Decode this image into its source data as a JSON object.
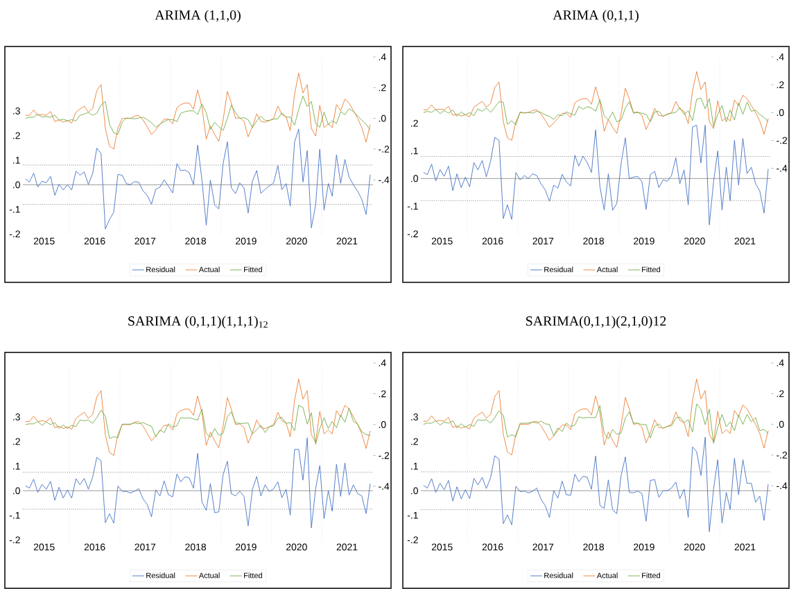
{
  "chart_data": [
    {
      "type": "line",
      "title": "ARIMA (1,1,0)",
      "legend": "bottom",
      "x": [
        "2015-02",
        "2015-03",
        "2015-04",
        "2015-05",
        "2015-06",
        "2015-07",
        "2015-08",
        "2015-09",
        "2015-10",
        "2015-11",
        "2015-12",
        "2016-01",
        "2016-02",
        "2016-03",
        "2016-04",
        "2016-05",
        "2016-06",
        "2016-07",
        "2016-08",
        "2016-09",
        "2016-10",
        "2016-11",
        "2016-12",
        "2017-01",
        "2017-02",
        "2017-03",
        "2017-04",
        "2017-05",
        "2017-06",
        "2017-07",
        "2017-08",
        "2017-09",
        "2017-10",
        "2017-11",
        "2017-12",
        "2018-01",
        "2018-02",
        "2018-03",
        "2018-04",
        "2018-05",
        "2018-06",
        "2018-07",
        "2018-08",
        "2018-09",
        "2018-10",
        "2018-11",
        "2018-12",
        "2019-01",
        "2019-02",
        "2019-03",
        "2019-04",
        "2019-05",
        "2019-06",
        "2019-07",
        "2019-08",
        "2019-09",
        "2019-10",
        "2019-11",
        "2019-12",
        "2020-01",
        "2020-02",
        "2020-03",
        "2020-04",
        "2020-05",
        "2020-06",
        "2020-07",
        "2020-08",
        "2020-09",
        "2020-10",
        "2020-11",
        "2020-12",
        "2021-01",
        "2021-02",
        "2021-03",
        "2021-04",
        "2021-05",
        "2021-06",
        "2021-07",
        "2021-08",
        "2021-09",
        "2021-10",
        "2021-11",
        "2021-12"
      ],
      "xlim": [
        "2015-01-13",
        "2021-12-21"
      ],
      "xticks": [
        {
          "value": "2015-06-16",
          "label": "2015"
        },
        {
          "value": "2016-06-16",
          "label": "2016"
        },
        {
          "value": "2017-06-16",
          "label": "2017"
        },
        {
          "value": "2018-06-16",
          "label": "2018"
        },
        {
          "value": "2019-06-16",
          "label": "2019"
        },
        {
          "value": "2020-06-16",
          "label": "2020"
        },
        {
          "value": "2021-06-16",
          "label": "2021"
        }
      ],
      "ylim": [
        -0.205,
        0.52
      ],
      "yticks": [
        {
          "value": -0.2,
          "label": "-.2"
        },
        {
          "value": -0.1,
          "label": "-.1"
        },
        {
          "value": 0,
          "label": ".0"
        },
        {
          "value": 0.1,
          "label": ".1"
        },
        {
          "value": 0.2,
          "label": ".2"
        },
        {
          "value": 0.3,
          "label": ".3"
        }
      ],
      "y2lim": [
        -0.76,
        0.4
      ],
      "y2ticks": [
        {
          "value": -0.4,
          "label": "-.4"
        },
        {
          "value": -0.2,
          "label": "-.2"
        },
        {
          "value": 0,
          "label": ".0"
        },
        {
          "value": 0.2,
          "label": ".2"
        },
        {
          "value": 0.4,
          "label": ".4"
        }
      ],
      "ref_lines": [
        {
          "axis": "x",
          "value": "2015-12-16",
          "color": "#d9d9d9",
          "line_style": "dotted"
        },
        {
          "axis": "x",
          "value": "2016-12-16",
          "color": "#d9d9d9",
          "line_style": "dotted"
        },
        {
          "axis": "x",
          "value": "2017-12-16",
          "color": "#d9d9d9",
          "line_style": "dotted"
        },
        {
          "axis": "x",
          "value": "2018-12-16",
          "color": "#d9d9d9",
          "line_style": "dotted"
        },
        {
          "axis": "x",
          "value": "2019-12-16",
          "color": "#d9d9d9",
          "line_style": "dotted"
        },
        {
          "axis": "x",
          "value": "2020-12-16",
          "color": "#d9d9d9",
          "line_style": "dotted"
        },
        {
          "axis": "y",
          "value": 0,
          "color": "#808080",
          "line_style": "solid"
        },
        {
          "axis": "y",
          "value": 0.08,
          "color": "#404040",
          "line_style": "dotted"
        },
        {
          "axis": "y",
          "value": -0.08,
          "color": "#404040",
          "line_style": "dotted"
        }
      ],
      "series": [
        {
          "name": "Residual",
          "color": "#4472c4",
          "values": [
            0.024,
            0.011,
            0.047,
            -0.009,
            0.015,
            0.008,
            0.034,
            -0.043,
            0.002,
            -0.021,
            0.0,
            -0.021,
            0.055,
            0.039,
            0.052,
            0.001,
            0.046,
            0.149,
            0.127,
            -0.18,
            -0.141,
            -0.112,
            0.042,
            0.039,
            0.004,
            0.001,
            0.013,
            0.01,
            -0.025,
            -0.043,
            -0.079,
            -0.018,
            -0.01,
            0.02,
            -0.005,
            -0.033,
            0.086,
            0.057,
            0.06,
            0.049,
            0.001,
            0.161,
            0.019,
            -0.164,
            0.019,
            -0.082,
            -0.098,
            0.086,
            0.175,
            -0.012,
            -0.036,
            0.008,
            -0.012,
            -0.115,
            0.015,
            0.058,
            -0.035,
            -0.018,
            -0.005,
            0.008,
            0.078,
            -0.02,
            0.005,
            -0.087,
            0.173,
            0.227,
            0.011,
            0.139,
            -0.175,
            -0.082,
            0.145,
            -0.103,
            0.005,
            -0.046,
            0.122,
            0.006,
            0.103,
            0.031,
            0.0,
            -0.026,
            -0.059,
            -0.121,
            0.041
          ]
        },
        {
          "name": "Actual",
          "color": "#ed7d31",
          "axis": "y2",
          "values": [
            0.02,
            0.02,
            0.055,
            0.02,
            0.025,
            0.02,
            0.045,
            -0.02,
            -0.01,
            -0.025,
            -0.015,
            -0.03,
            0.04,
            0.06,
            0.08,
            0.04,
            0.065,
            0.18,
            0.22,
            -0.065,
            -0.18,
            -0.2,
            -0.065,
            0.0,
            0.0,
            0.0,
            0.015,
            0.02,
            -0.01,
            -0.055,
            -0.105,
            -0.075,
            -0.04,
            -0.005,
            -0.005,
            -0.035,
            0.07,
            0.09,
            0.1,
            0.1,
            0.06,
            0.185,
            0.075,
            -0.135,
            -0.05,
            -0.105,
            -0.15,
            -0.01,
            0.175,
            0.1,
            0.0,
            0.005,
            -0.02,
            -0.12,
            -0.055,
            0.03,
            -0.02,
            -0.025,
            -0.015,
            0.0,
            0.08,
            0.025,
            0.01,
            -0.08,
            0.155,
            0.295,
            0.165,
            0.22,
            -0.065,
            -0.115,
            0.085,
            -0.06,
            -0.035,
            -0.06,
            0.09,
            0.05,
            0.125,
            0.1,
            0.05,
            0.0,
            -0.06,
            -0.155,
            -0.04
          ]
        },
        {
          "name": "Fitted",
          "color": "#70ad47",
          "axis": "y2",
          "values": [
            0.0,
            0.007,
            0.008,
            0.028,
            0.008,
            0.012,
            0.008,
            0.021,
            -0.012,
            -0.005,
            -0.016,
            -0.008,
            -0.016,
            0.02,
            0.028,
            0.038,
            0.02,
            0.033,
            0.087,
            0.11,
            -0.038,
            -0.094,
            -0.104,
            -0.025,
            0.003,
            0.0,
            -0.003,
            0.003,
            0.008,
            -0.008,
            -0.028,
            -0.058,
            -0.038,
            -0.021,
            -0.008,
            -0.008,
            -0.021,
            0.033,
            0.044,
            0.049,
            0.049,
            0.025,
            0.094,
            0.036,
            -0.071,
            -0.025,
            -0.054,
            -0.079,
            0.0,
            0.086,
            0.038,
            0.0,
            0.005,
            -0.008,
            -0.061,
            -0.016,
            0.013,
            -0.013,
            -0.013,
            -0.005,
            -0.003,
            0.036,
            0.008,
            0.008,
            -0.044,
            0.058,
            0.145,
            0.077,
            0.11,
            -0.033,
            -0.058,
            0.041,
            -0.041,
            -0.016,
            -0.033,
            0.044,
            0.025,
            0.063,
            0.044,
            0.016,
            -0.012,
            -0.038,
            -0.077
          ]
        }
      ]
    },
    {
      "type": "line",
      "title": "ARIMA (0,1,1)",
      "legend": "bottom",
      "x": [
        "2015-02",
        "2015-03",
        "2015-04",
        "2015-05",
        "2015-06",
        "2015-07",
        "2015-08",
        "2015-09",
        "2015-10",
        "2015-11",
        "2015-12",
        "2016-01",
        "2016-02",
        "2016-03",
        "2016-04",
        "2016-05",
        "2016-06",
        "2016-07",
        "2016-08",
        "2016-09",
        "2016-10",
        "2016-11",
        "2016-12",
        "2017-01",
        "2017-02",
        "2017-03",
        "2017-04",
        "2017-05",
        "2017-06",
        "2017-07",
        "2017-08",
        "2017-09",
        "2017-10",
        "2017-11",
        "2017-12",
        "2018-01",
        "2018-02",
        "2018-03",
        "2018-04",
        "2018-05",
        "2018-06",
        "2018-07",
        "2018-08",
        "2018-09",
        "2018-10",
        "2018-11",
        "2018-12",
        "2019-01",
        "2019-02",
        "2019-03",
        "2019-04",
        "2019-05",
        "2019-06",
        "2019-07",
        "2019-08",
        "2019-09",
        "2019-10",
        "2019-11",
        "2019-12",
        "2020-01",
        "2020-02",
        "2020-03",
        "2020-04",
        "2020-05",
        "2020-06",
        "2020-07",
        "2020-08",
        "2020-09",
        "2020-10",
        "2020-11",
        "2020-12",
        "2021-01",
        "2021-02",
        "2021-03",
        "2021-04",
        "2021-05",
        "2021-06",
        "2021-07",
        "2021-08",
        "2021-09",
        "2021-10",
        "2021-11",
        "2021-12"
      ],
      "xlim": [
        "2015-01-13",
        "2021-12-21"
      ],
      "xticks": [
        {
          "value": "2015-06-16",
          "label": "2015"
        },
        {
          "value": "2016-06-16",
          "label": "2016"
        },
        {
          "value": "2017-06-16",
          "label": "2017"
        },
        {
          "value": "2018-06-16",
          "label": "2018"
        },
        {
          "value": "2019-06-16",
          "label": "2019"
        },
        {
          "value": "2020-06-16",
          "label": "2020"
        },
        {
          "value": "2021-06-16",
          "label": "2021"
        }
      ],
      "ylim": [
        -0.205,
        0.44
      ],
      "yticks": [
        {
          "value": -0.2,
          "label": "-.2"
        },
        {
          "value": -0.1,
          "label": "-.1"
        },
        {
          "value": 0,
          "label": ".0"
        },
        {
          "value": 0.1,
          "label": ".1"
        },
        {
          "value": 0.2,
          "label": ".2"
        }
      ],
      "y2lim": [
        -0.88,
        0.4
      ],
      "y2ticks": [
        {
          "value": -0.4,
          "label": "-.4"
        },
        {
          "value": -0.2,
          "label": "-.2"
        },
        {
          "value": 0,
          "label": ".0"
        },
        {
          "value": 0.2,
          "label": ".2"
        },
        {
          "value": 0.4,
          "label": ".4"
        }
      ],
      "ref_lines": [
        {
          "axis": "x",
          "value": "2015-12-16",
          "color": "#d9d9d9",
          "line_style": "dotted"
        },
        {
          "axis": "x",
          "value": "2016-12-16",
          "color": "#d9d9d9",
          "line_style": "dotted"
        },
        {
          "axis": "x",
          "value": "2017-12-16",
          "color": "#d9d9d9",
          "line_style": "dotted"
        },
        {
          "axis": "x",
          "value": "2018-12-16",
          "color": "#d9d9d9",
          "line_style": "dotted"
        },
        {
          "axis": "x",
          "value": "2019-12-16",
          "color": "#d9d9d9",
          "line_style": "dotted"
        },
        {
          "axis": "x",
          "value": "2020-12-16",
          "color": "#d9d9d9",
          "line_style": "dotted"
        },
        {
          "axis": "y",
          "value": 0,
          "color": "#808080",
          "line_style": "solid"
        },
        {
          "axis": "y",
          "value": 0.08,
          "color": "#404040",
          "line_style": "dotted"
        },
        {
          "axis": "y",
          "value": -0.08,
          "color": "#404040",
          "line_style": "dotted"
        }
      ],
      "series": [
        {
          "name": "Residual",
          "color": "#4472c4",
          "values": [
            0.022,
            0.014,
            0.052,
            -0.009,
            0.032,
            0.008,
            0.045,
            -0.044,
            0.017,
            -0.033,
            0.005,
            -0.03,
            0.058,
            0.031,
            0.065,
            0.006,
            0.063,
            0.149,
            0.138,
            -0.145,
            -0.095,
            -0.148,
            0.022,
            -0.005,
            0.011,
            0.0,
            0.017,
            0.011,
            -0.019,
            -0.041,
            -0.082,
            -0.024,
            -0.035,
            0.015,
            -0.012,
            -0.027,
            0.084,
            0.045,
            0.081,
            0.058,
            0.022,
            0.176,
            -0.03,
            -0.114,
            0.017,
            -0.115,
            -0.091,
            0.054,
            0.147,
            0.0,
            0.005,
            0.008,
            -0.012,
            -0.112,
            0.015,
            0.026,
            -0.033,
            -0.005,
            -0.01,
            0.011,
            0.075,
            -0.019,
            0.031,
            -0.095,
            0.186,
            0.193,
            0.056,
            0.193,
            -0.168,
            -0.01,
            0.1,
            -0.114,
            0.041,
            -0.08,
            0.138,
            -0.024,
            0.145,
            0.018,
            0.041,
            -0.019,
            -0.045,
            -0.125,
            0.034
          ]
        },
        {
          "name": "Actual",
          "color": "#ed7d31",
          "axis": "y2",
          "values": [
            0.02,
            0.02,
            0.055,
            0.02,
            0.025,
            0.02,
            0.045,
            -0.02,
            -0.01,
            -0.025,
            -0.015,
            -0.03,
            0.04,
            0.06,
            0.08,
            0.04,
            0.065,
            0.18,
            0.22,
            -0.065,
            -0.18,
            -0.2,
            -0.065,
            0.0,
            0.0,
            0.0,
            0.015,
            0.02,
            -0.01,
            -0.055,
            -0.105,
            -0.075,
            -0.04,
            -0.005,
            -0.005,
            -0.035,
            0.07,
            0.09,
            0.1,
            0.1,
            0.06,
            0.185,
            0.075,
            -0.135,
            -0.05,
            -0.105,
            -0.15,
            -0.01,
            0.175,
            0.1,
            0.0,
            0.005,
            -0.02,
            -0.12,
            -0.055,
            0.03,
            -0.02,
            -0.025,
            -0.015,
            0.0,
            0.08,
            0.025,
            0.01,
            -0.08,
            0.155,
            0.295,
            0.165,
            0.22,
            -0.065,
            -0.115,
            0.085,
            -0.06,
            -0.035,
            -0.06,
            0.09,
            0.05,
            0.125,
            0.1,
            0.05,
            0.0,
            -0.06,
            -0.155,
            -0.04
          ]
        },
        {
          "name": "Fitted",
          "color": "#70ad47",
          "axis": "y2",
          "values": [
            0.0,
            0.009,
            0.002,
            0.024,
            -0.007,
            0.015,
            -0.004,
            0.02,
            -0.027,
            0.005,
            -0.016,
            0.0,
            -0.022,
            0.027,
            0.009,
            0.033,
            0.002,
            0.038,
            0.078,
            0.075,
            -0.085,
            -0.058,
            -0.089,
            0.005,
            -0.004,
            0.002,
            -0.004,
            0.009,
            0.002,
            -0.016,
            -0.027,
            -0.049,
            -0.016,
            -0.022,
            0.005,
            -0.009,
            -0.018,
            0.045,
            0.024,
            0.042,
            0.033,
            0.009,
            0.093,
            -0.022,
            -0.053,
            0.005,
            -0.067,
            -0.053,
            0.033,
            0.078,
            -0.004,
            0.0,
            -0.004,
            -0.013,
            -0.067,
            0.005,
            0.009,
            -0.027,
            -0.009,
            -0.005,
            0.002,
            0.036,
            -0.013,
            0.013,
            -0.058,
            0.096,
            0.105,
            0.027,
            0.1,
            -0.1,
            -0.013,
            0.051,
            -0.067,
            0.018,
            -0.053,
            0.069,
            -0.013,
            0.075,
            0.009,
            0.018,
            -0.013,
            -0.035,
            -0.067
          ]
        }
      ]
    },
    {
      "type": "line",
      "title": "SARIMA (0,1,1)(1,1,1)$_{12}$",
      "legend": "bottom",
      "x": [
        "2015-02",
        "2015-03",
        "2015-04",
        "2015-05",
        "2015-06",
        "2015-07",
        "2015-08",
        "2015-09",
        "2015-10",
        "2015-11",
        "2015-12",
        "2016-01",
        "2016-02",
        "2016-03",
        "2016-04",
        "2016-05",
        "2016-06",
        "2016-07",
        "2016-08",
        "2016-09",
        "2016-10",
        "2016-11",
        "2016-12",
        "2017-01",
        "2017-02",
        "2017-03",
        "2017-04",
        "2017-05",
        "2017-06",
        "2017-07",
        "2017-08",
        "2017-09",
        "2017-10",
        "2017-11",
        "2017-12",
        "2018-01",
        "2018-02",
        "2018-03",
        "2018-04",
        "2018-05",
        "2018-06",
        "2018-07",
        "2018-08",
        "2018-09",
        "2018-10",
        "2018-11",
        "2018-12",
        "2019-01",
        "2019-02",
        "2019-03",
        "2019-04",
        "2019-05",
        "2019-06",
        "2019-07",
        "2019-08",
        "2019-09",
        "2019-10",
        "2019-11",
        "2019-12",
        "2020-01",
        "2020-02",
        "2020-03",
        "2020-04",
        "2020-05",
        "2020-06",
        "2020-07",
        "2020-08",
        "2020-09",
        "2020-10",
        "2020-11",
        "2020-12",
        "2021-01",
        "2021-02",
        "2021-03",
        "2021-04",
        "2021-05",
        "2021-06",
        "2021-07",
        "2021-08",
        "2021-09",
        "2021-10",
        "2021-11",
        "2021-12"
      ],
      "xlim": [
        "2015-01-13",
        "2021-12-21"
      ],
      "xticks": [
        {
          "value": "2015-06-16",
          "label": "2015"
        },
        {
          "value": "2016-06-16",
          "label": "2016"
        },
        {
          "value": "2017-06-16",
          "label": "2017"
        },
        {
          "value": "2018-06-16",
          "label": "2018"
        },
        {
          "value": "2019-06-16",
          "label": "2019"
        },
        {
          "value": "2020-06-16",
          "label": "2020"
        },
        {
          "value": "2021-06-16",
          "label": "2021"
        }
      ],
      "ylim": [
        -0.205,
        0.52
      ],
      "yticks": [
        {
          "value": -0.2,
          "label": "-.2"
        },
        {
          "value": -0.1,
          "label": "-.1"
        },
        {
          "value": 0,
          "label": ".0"
        },
        {
          "value": 0.1,
          "label": ".1"
        },
        {
          "value": 0.2,
          "label": ".2"
        },
        {
          "value": 0.3,
          "label": ".3"
        }
      ],
      "y2lim": [
        -0.755,
        0.4
      ],
      "y2ticks": [
        {
          "value": -0.4,
          "label": "-.4"
        },
        {
          "value": -0.2,
          "label": "-.2"
        },
        {
          "value": 0,
          "label": ".0"
        },
        {
          "value": 0.2,
          "label": ".2"
        },
        {
          "value": 0.4,
          "label": ".4"
        }
      ],
      "ref_lines": [
        {
          "axis": "x",
          "value": "2015-12-16",
          "color": "#d9d9d9",
          "line_style": "dotted"
        },
        {
          "axis": "x",
          "value": "2016-12-16",
          "color": "#d9d9d9",
          "line_style": "dotted"
        },
        {
          "axis": "x",
          "value": "2017-12-16",
          "color": "#d9d9d9",
          "line_style": "dotted"
        },
        {
          "axis": "x",
          "value": "2018-12-16",
          "color": "#d9d9d9",
          "line_style": "dotted"
        },
        {
          "axis": "x",
          "value": "2019-12-16",
          "color": "#d9d9d9",
          "line_style": "dotted"
        },
        {
          "axis": "x",
          "value": "2020-12-16",
          "color": "#d9d9d9",
          "line_style": "dotted"
        },
        {
          "axis": "y",
          "value": 0,
          "color": "#808080",
          "line_style": "solid"
        },
        {
          "axis": "y",
          "value": 0.075,
          "color": "#404040",
          "line_style": "dotted"
        },
        {
          "axis": "y",
          "value": -0.075,
          "color": "#404040",
          "line_style": "dotted"
        }
      ],
      "series": [
        {
          "name": "Residual",
          "color": "#4472c4",
          "values": [
            0.019,
            0.011,
            0.047,
            -0.007,
            0.026,
            0.006,
            0.038,
            -0.039,
            0.014,
            -0.03,
            0.003,
            -0.03,
            0.049,
            0.024,
            0.05,
            0.006,
            0.055,
            0.136,
            0.121,
            -0.13,
            -0.094,
            -0.132,
            0.019,
            -0.002,
            -0.003,
            -0.009,
            -0.002,
            0.008,
            -0.033,
            -0.056,
            -0.106,
            0.003,
            -0.021,
            0.04,
            -0.016,
            -0.025,
            0.068,
            0.036,
            0.057,
            0.052,
            0.01,
            0.152,
            -0.046,
            -0.08,
            0.029,
            -0.089,
            -0.086,
            0.066,
            0.12,
            -0.012,
            -0.021,
            -0.002,
            -0.023,
            -0.143,
            0.005,
            0.058,
            -0.021,
            0.024,
            -0.003,
            0.008,
            0.036,
            -0.028,
            0.005,
            -0.099,
            0.168,
            0.168,
            0.043,
            0.215,
            -0.151,
            0.008,
            0.102,
            -0.114,
            0.001,
            -0.083,
            0.107,
            -0.023,
            0.113,
            -0.018,
            0.024,
            -0.012,
            -0.021,
            -0.093,
            0.029
          ]
        },
        {
          "name": "Actual",
          "color": "#ed7d31",
          "axis": "y2",
          "values": [
            0.02,
            0.02,
            0.055,
            0.02,
            0.025,
            0.02,
            0.045,
            -0.02,
            -0.01,
            -0.025,
            -0.015,
            -0.03,
            0.04,
            0.06,
            0.08,
            0.04,
            0.065,
            0.18,
            0.22,
            -0.065,
            -0.18,
            -0.2,
            -0.065,
            0.0,
            0.0,
            0.0,
            0.015,
            0.02,
            -0.01,
            -0.055,
            -0.105,
            -0.075,
            -0.04,
            -0.005,
            -0.005,
            -0.035,
            0.07,
            0.09,
            0.1,
            0.1,
            0.06,
            0.185,
            0.075,
            -0.135,
            -0.05,
            -0.105,
            -0.15,
            -0.01,
            0.175,
            0.1,
            0.0,
            0.005,
            -0.02,
            -0.12,
            -0.055,
            0.03,
            -0.02,
            -0.025,
            -0.015,
            0.0,
            0.08,
            0.025,
            0.01,
            -0.08,
            0.155,
            0.295,
            0.165,
            0.22,
            -0.065,
            -0.115,
            0.085,
            -0.06,
            -0.035,
            -0.06,
            0.09,
            0.05,
            0.125,
            0.1,
            0.05,
            0.0,
            -0.06,
            -0.155,
            -0.04
          ]
        },
        {
          "name": "Fitted",
          "color": "#70ad47",
          "axis": "y2",
          "values": [
            0.0,
            0.005,
            0.005,
            0.02,
            -0.005,
            0.016,
            0.0,
            0.013,
            -0.025,
            -0.003,
            -0.025,
            -0.005,
            -0.013,
            0.029,
            0.025,
            0.029,
            0.008,
            0.046,
            0.093,
            0.054,
            -0.09,
            -0.079,
            -0.085,
            0.003,
            0.003,
            0.003,
            0.011,
            0.005,
            0.013,
            0.0,
            -0.011,
            -0.079,
            -0.036,
            -0.052,
            0.005,
            -0.016,
            -0.008,
            0.046,
            0.041,
            0.044,
            0.036,
            0.029,
            0.101,
            -0.057,
            -0.082,
            -0.025,
            -0.07,
            -0.057,
            0.052,
            0.082,
            0.011,
            0.008,
            0.008,
            0.011,
            -0.062,
            -0.033,
            -0.005,
            -0.052,
            -0.013,
            -0.008,
            0.041,
            0.046,
            0.008,
            0.013,
            -0.041,
            0.126,
            0.111,
            0.003,
            0.077,
            -0.128,
            -0.025,
            0.044,
            -0.025,
            0.02,
            -0.02,
            0.061,
            0.016,
            0.106,
            0.02,
            0.003,
            -0.046,
            -0.065,
            -0.07
          ]
        }
      ]
    },
    {
      "type": "line",
      "title": "SARIMA(0,1,1)(2,1,0)12",
      "legend": "bottom",
      "x": [
        "2015-02",
        "2015-03",
        "2015-04",
        "2015-05",
        "2015-06",
        "2015-07",
        "2015-08",
        "2015-09",
        "2015-10",
        "2015-11",
        "2015-12",
        "2016-01",
        "2016-02",
        "2016-03",
        "2016-04",
        "2016-05",
        "2016-06",
        "2016-07",
        "2016-08",
        "2016-09",
        "2016-10",
        "2016-11",
        "2016-12",
        "2017-01",
        "2017-02",
        "2017-03",
        "2017-04",
        "2017-05",
        "2017-06",
        "2017-07",
        "2017-08",
        "2017-09",
        "2017-10",
        "2017-11",
        "2017-12",
        "2018-01",
        "2018-02",
        "2018-03",
        "2018-04",
        "2018-05",
        "2018-06",
        "2018-07",
        "2018-08",
        "2018-09",
        "2018-10",
        "2018-11",
        "2018-12",
        "2019-01",
        "2019-02",
        "2019-03",
        "2019-04",
        "2019-05",
        "2019-06",
        "2019-07",
        "2019-08",
        "2019-09",
        "2019-10",
        "2019-11",
        "2019-12",
        "2020-01",
        "2020-02",
        "2020-03",
        "2020-04",
        "2020-05",
        "2020-06",
        "2020-07",
        "2020-08",
        "2020-09",
        "2020-10",
        "2020-11",
        "2020-12",
        "2021-01",
        "2021-02",
        "2021-03",
        "2021-04",
        "2021-05",
        "2021-06",
        "2021-07",
        "2021-08",
        "2021-09",
        "2021-10",
        "2021-11",
        "2021-12"
      ],
      "xlim": [
        "2015-01-13",
        "2021-12-21"
      ],
      "xticks": [
        {
          "value": "2015-06-16",
          "label": "2015"
        },
        {
          "value": "2016-06-16",
          "label": "2016"
        },
        {
          "value": "2017-06-16",
          "label": "2017"
        },
        {
          "value": "2018-06-16",
          "label": "2018"
        },
        {
          "value": "2019-06-16",
          "label": "2019"
        },
        {
          "value": "2020-06-16",
          "label": "2020"
        },
        {
          "value": "2021-06-16",
          "label": "2021"
        }
      ],
      "ylim": [
        -0.205,
        0.52
      ],
      "yticks": [
        {
          "value": -0.2,
          "label": "-.2"
        },
        {
          "value": -0.1,
          "label": "-.1"
        },
        {
          "value": 0,
          "label": ".0"
        },
        {
          "value": 0.1,
          "label": ".1"
        },
        {
          "value": 0.2,
          "label": ".2"
        },
        {
          "value": 0.3,
          "label": ".3"
        }
      ],
      "y2lim": [
        -0.76,
        0.4
      ],
      "y2ticks": [
        {
          "value": -0.4,
          "label": "-.4"
        },
        {
          "value": -0.2,
          "label": "-.2"
        },
        {
          "value": 0,
          "label": ".0"
        },
        {
          "value": 0.2,
          "label": ".2"
        },
        {
          "value": 0.4,
          "label": ".4"
        }
      ],
      "ref_lines": [
        {
          "axis": "x",
          "value": "2015-12-16",
          "color": "#d9d9d9",
          "line_style": "dotted"
        },
        {
          "axis": "x",
          "value": "2016-12-16",
          "color": "#d9d9d9",
          "line_style": "dotted"
        },
        {
          "axis": "x",
          "value": "2017-12-16",
          "color": "#d9d9d9",
          "line_style": "dotted"
        },
        {
          "axis": "x",
          "value": "2018-12-16",
          "color": "#d9d9d9",
          "line_style": "dotted"
        },
        {
          "axis": "x",
          "value": "2019-12-16",
          "color": "#d9d9d9",
          "line_style": "dotted"
        },
        {
          "axis": "x",
          "value": "2020-12-16",
          "color": "#d9d9d9",
          "line_style": "dotted"
        },
        {
          "axis": "y",
          "value": 0,
          "color": "#808080",
          "line_style": "solid"
        },
        {
          "axis": "y",
          "value": 0.077,
          "color": "#404040",
          "line_style": "dotted"
        },
        {
          "axis": "y",
          "value": -0.077,
          "color": "#404040",
          "line_style": "dotted"
        }
      ],
      "series": [
        {
          "name": "Residual",
          "color": "#4472c4",
          "values": [
            0.021,
            0.011,
            0.049,
            -0.007,
            0.03,
            0.004,
            0.042,
            -0.042,
            0.016,
            -0.033,
            0.004,
            -0.032,
            0.05,
            0.024,
            0.054,
            0.009,
            0.054,
            0.142,
            0.129,
            -0.134,
            -0.098,
            -0.139,
            0.018,
            -0.004,
            -0.001,
            -0.009,
            -0.002,
            0.011,
            -0.035,
            -0.06,
            -0.109,
            0.001,
            -0.03,
            0.039,
            -0.016,
            -0.019,
            0.067,
            0.037,
            0.059,
            0.055,
            0.006,
            0.141,
            -0.06,
            -0.072,
            0.044,
            -0.078,
            -0.093,
            0.062,
            0.137,
            -0.006,
            -0.009,
            -0.001,
            -0.012,
            -0.124,
            0.042,
            0.045,
            -0.027,
            0.0,
            0.0,
            0.011,
            0.035,
            -0.033,
            0.006,
            -0.109,
            0.178,
            0.159,
            0.062,
            0.218,
            -0.167,
            0.009,
            0.126,
            -0.132,
            -0.007,
            -0.076,
            0.132,
            -0.016,
            0.126,
            0.03,
            0.03,
            -0.047,
            -0.022,
            -0.121,
            0.027
          ]
        },
        {
          "name": "Actual",
          "color": "#ed7d31",
          "axis": "y2",
          "values": [
            0.02,
            0.02,
            0.055,
            0.02,
            0.025,
            0.02,
            0.045,
            -0.02,
            -0.01,
            -0.025,
            -0.015,
            -0.03,
            0.04,
            0.06,
            0.08,
            0.04,
            0.065,
            0.18,
            0.22,
            -0.065,
            -0.18,
            -0.2,
            -0.065,
            0.0,
            0.0,
            0.0,
            0.015,
            0.02,
            -0.01,
            -0.055,
            -0.105,
            -0.075,
            -0.04,
            -0.005,
            -0.005,
            -0.035,
            0.07,
            0.09,
            0.1,
            0.1,
            0.06,
            0.185,
            0.075,
            -0.135,
            -0.05,
            -0.105,
            -0.15,
            -0.01,
            0.175,
            0.1,
            0.0,
            0.005,
            -0.02,
            -0.12,
            -0.055,
            0.03,
            -0.02,
            -0.025,
            -0.015,
            0.0,
            0.08,
            0.025,
            0.01,
            -0.08,
            0.155,
            0.295,
            0.165,
            0.22,
            -0.065,
            -0.115,
            0.085,
            -0.06,
            -0.035,
            -0.06,
            0.09,
            0.05,
            0.125,
            0.1,
            0.05,
            0.0,
            -0.06,
            -0.155,
            -0.04
          ]
        },
        {
          "name": "Fitted",
          "color": "#70ad47",
          "axis": "y2",
          "values": [
            0.0,
            0.008,
            0.007,
            0.023,
            -0.005,
            0.015,
            0.007,
            0.023,
            -0.024,
            0.003,
            -0.018,
            -0.002,
            -0.013,
            0.031,
            0.024,
            0.031,
            0.008,
            0.044,
            0.088,
            0.06,
            -0.083,
            -0.067,
            -0.081,
            0.007,
            0.007,
            0.008,
            0.015,
            0.008,
            0.02,
            0.003,
            0.0,
            -0.075,
            -0.024,
            -0.046,
            0.008,
            -0.016,
            -0.005,
            0.049,
            0.041,
            0.044,
            0.044,
            0.044,
            0.122,
            -0.059,
            -0.094,
            -0.034,
            -0.065,
            -0.057,
            0.041,
            0.08,
            0.007,
            0.008,
            -0.002,
            -0.002,
            -0.089,
            -0.013,
            0.003,
            -0.026,
            -0.013,
            -0.01,
            0.041,
            0.047,
            0.011,
            0.031,
            -0.05,
            0.133,
            0.098,
            -0.002,
            0.099,
            -0.124,
            -0.021,
            0.065,
            -0.016,
            0.016,
            -0.041,
            0.06,
            0.0,
            0.065,
            0.016,
            0.044,
            -0.041,
            -0.034,
            -0.059
          ]
        }
      ]
    }
  ]
}
